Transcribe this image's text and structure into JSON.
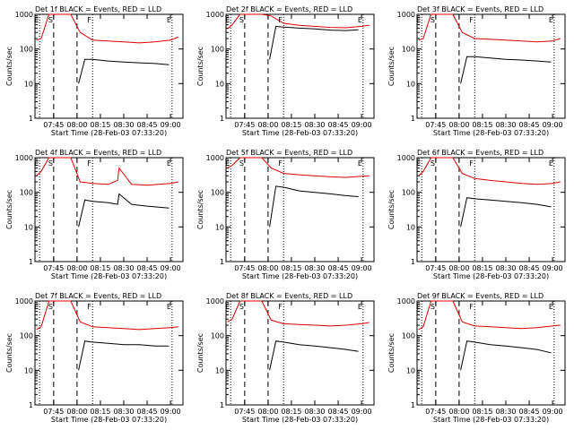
{
  "figure": {
    "legend_text": "BLACK = Events, RED = LLD",
    "xlabel": "Start Time (28-Feb-03 07:33:20)",
    "ylabel": "Counts/sec"
  },
  "colors": {
    "events": "#000000",
    "lld": "#dd0000"
  },
  "chart_data": [
    {
      "type": "line",
      "detector": "Det 1f",
      "title": "Det 1f BLACK = Events, RED = LLD",
      "xlabel": "Start Time (28-Feb-03 07:33:20)",
      "ylabel": "Counts/sec",
      "x_unit": "HH:MM",
      "xlim": [
        "07:33",
        "09:08"
      ],
      "ylim": [
        1,
        1000
      ],
      "yscale": "log",
      "x_ticks": [
        "07:45",
        "08:00",
        "08:15",
        "08:30",
        "08:45",
        "09:00"
      ],
      "y_ticks": [
        "1",
        "10",
        "100",
        "1000"
      ],
      "markers": [
        {
          "label": "E",
          "x": "07:36"
        },
        {
          "label": "S",
          "x": "07:45"
        },
        {
          "label": "F",
          "x": "08:10"
        },
        {
          "label": "E",
          "x": "09:01"
        }
      ],
      "dashed_lines": [
        "07:45",
        "08:00"
      ],
      "dotted_lines": [
        "07:36",
        "08:10",
        "09:01"
      ],
      "series": [
        {
          "name": "Events",
          "color": "black",
          "x": [
            "08:01",
            "08:05",
            "08:10",
            "08:20",
            "08:30",
            "08:40",
            "08:50",
            "08:59"
          ],
          "y": [
            10,
            50,
            50,
            45,
            42,
            40,
            38,
            35
          ]
        },
        {
          "name": "LLD",
          "color": "red",
          "x": [
            "07:34",
            "07:37",
            "07:42",
            "07:48",
            "07:56",
            "08:02",
            "08:10",
            "08:20",
            "08:30",
            "08:40",
            "08:50",
            "09:00",
            "09:05"
          ],
          "y": [
            180,
            200,
            1000,
            1000,
            1000,
            300,
            180,
            170,
            160,
            150,
            160,
            180,
            220
          ]
        }
      ]
    },
    {
      "type": "line",
      "detector": "Det 2f",
      "title": "Det 2f BLACK = Events, RED = LLD",
      "xlabel": "Start Time (28-Feb-03 07:33:20)",
      "ylabel": "Counts/sec",
      "x_unit": "HH:MM",
      "xlim": [
        "07:33",
        "09:08"
      ],
      "ylim": [
        1,
        1000
      ],
      "yscale": "log",
      "x_ticks": [
        "07:45",
        "08:00",
        "08:15",
        "08:30",
        "08:45",
        "09:00"
      ],
      "y_ticks": [
        "1",
        "10",
        "100",
        "1000"
      ],
      "markers": [
        {
          "label": "E",
          "x": "07:36"
        },
        {
          "label": "S",
          "x": "07:45"
        },
        {
          "label": "F",
          "x": "08:10"
        },
        {
          "label": "E",
          "x": "09:01"
        }
      ],
      "dashed_lines": [
        "07:45",
        "08:00"
      ],
      "dotted_lines": [
        "07:36",
        "08:10",
        "09:01"
      ],
      "series": [
        {
          "name": "Events",
          "color": "black",
          "x": [
            "08:01",
            "08:05",
            "08:10",
            "08:20",
            "08:30",
            "08:40",
            "08:50",
            "08:58"
          ],
          "y": [
            50,
            450,
            430,
            400,
            380,
            350,
            340,
            360
          ]
        },
        {
          "name": "LLD",
          "color": "red",
          "x": [
            "07:34",
            "07:37",
            "07:42",
            "07:48",
            "07:56",
            "08:02",
            "08:10",
            "08:20",
            "08:30",
            "08:40",
            "08:50",
            "09:00",
            "09:05"
          ],
          "y": [
            380,
            500,
            1000,
            1000,
            1000,
            900,
            550,
            480,
            450,
            420,
            410,
            450,
            480
          ]
        }
      ]
    },
    {
      "type": "line",
      "detector": "Det 3f",
      "title": "Det 3f BLACK = Events, RED = LLD",
      "xlabel": "Start Time (28-Feb-03 07:33:20)",
      "ylabel": "Counts/sec",
      "x_unit": "HH:MM",
      "xlim": [
        "07:33",
        "09:08"
      ],
      "ylim": [
        1,
        1000
      ],
      "yscale": "log",
      "x_ticks": [
        "07:45",
        "08:00",
        "08:15",
        "08:30",
        "08:45",
        "09:00"
      ],
      "y_ticks": [
        "1",
        "10",
        "100",
        "1000"
      ],
      "markers": [
        {
          "label": "E",
          "x": "07:36"
        },
        {
          "label": "S",
          "x": "07:45"
        },
        {
          "label": "F",
          "x": "08:10"
        },
        {
          "label": "E",
          "x": "09:01"
        }
      ],
      "dashed_lines": [
        "07:45",
        "08:00"
      ],
      "dotted_lines": [
        "07:36",
        "08:10",
        "09:01"
      ],
      "series": [
        {
          "name": "Events",
          "color": "black",
          "x": [
            "08:01",
            "08:05",
            "08:10",
            "08:20",
            "08:30",
            "08:40",
            "08:50",
            "08:59"
          ],
          "y": [
            10,
            60,
            60,
            55,
            50,
            48,
            45,
            42
          ]
        },
        {
          "name": "LLD",
          "color": "red",
          "x": [
            "07:34",
            "07:37",
            "07:42",
            "07:48",
            "07:56",
            "08:02",
            "08:10",
            "08:20",
            "08:30",
            "08:40",
            "08:50",
            "09:00",
            "09:05"
          ],
          "y": [
            180,
            200,
            1000,
            1000,
            1000,
            300,
            200,
            190,
            180,
            170,
            160,
            170,
            200
          ]
        }
      ]
    },
    {
      "type": "line",
      "detector": "Det 4f",
      "title": "Det 4f BLACK = Events, RED = LLD",
      "xlabel": "Start Time (28-Feb-03 07:33:20)",
      "ylabel": "Counts/sec",
      "x_unit": "HH:MM",
      "xlim": [
        "07:33",
        "09:08"
      ],
      "ylim": [
        1,
        1000
      ],
      "yscale": "log",
      "x_ticks": [
        "07:45",
        "08:00",
        "08:15",
        "08:30",
        "08:45",
        "09:00"
      ],
      "y_ticks": [
        "1",
        "10",
        "100",
        "1000"
      ],
      "markers": [
        {
          "label": "E",
          "x": "07:36"
        },
        {
          "label": "S",
          "x": "07:45"
        },
        {
          "label": "F",
          "x": "08:10"
        },
        {
          "label": "E",
          "x": "09:01"
        }
      ],
      "dashed_lines": [
        "07:45",
        "08:00"
      ],
      "dotted_lines": [
        "07:36",
        "08:10",
        "09:01"
      ],
      "series": [
        {
          "name": "Events",
          "color": "black",
          "x": [
            "08:01",
            "08:05",
            "08:10",
            "08:20",
            "08:26",
            "08:27",
            "08:35",
            "08:45",
            "08:59"
          ],
          "y": [
            10,
            60,
            55,
            50,
            45,
            90,
            45,
            40,
            35
          ]
        },
        {
          "name": "LLD",
          "color": "red",
          "x": [
            "07:34",
            "07:37",
            "07:42",
            "07:48",
            "07:56",
            "08:02",
            "08:10",
            "08:20",
            "08:26",
            "08:27",
            "08:35",
            "08:45",
            "09:00",
            "09:05"
          ],
          "y": [
            300,
            400,
            1000,
            1000,
            1000,
            200,
            180,
            170,
            220,
            500,
            170,
            160,
            180,
            200
          ]
        }
      ]
    },
    {
      "type": "line",
      "detector": "Det 5f",
      "title": "Det 5f BLACK = Events, RED = LLD",
      "xlabel": "Start Time (28-Feb-03 07:33:20)",
      "ylabel": "Counts/sec",
      "x_unit": "HH:MM",
      "xlim": [
        "07:33",
        "09:08"
      ],
      "ylim": [
        1,
        1000
      ],
      "yscale": "log",
      "x_ticks": [
        "07:45",
        "08:00",
        "08:15",
        "08:30",
        "08:45",
        "09:00"
      ],
      "y_ticks": [
        "1",
        "10",
        "100",
        "1000"
      ],
      "markers": [
        {
          "label": "E",
          "x": "07:36"
        },
        {
          "label": "S",
          "x": "07:45"
        },
        {
          "label": "F",
          "x": "08:10"
        },
        {
          "label": "E",
          "x": "09:01"
        }
      ],
      "dashed_lines": [
        "07:45",
        "08:00"
      ],
      "dotted_lines": [
        "07:36",
        "08:10",
        "09:01"
      ],
      "series": [
        {
          "name": "Events",
          "color": "black",
          "x": [
            "08:01",
            "08:05",
            "08:10",
            "08:20",
            "08:30",
            "08:40",
            "08:50",
            "08:58"
          ],
          "y": [
            10,
            150,
            140,
            110,
            100,
            90,
            80,
            75
          ]
        },
        {
          "name": "LLD",
          "color": "red",
          "x": [
            "07:34",
            "07:37",
            "07:42",
            "07:48",
            "07:56",
            "08:02",
            "08:10",
            "08:20",
            "08:30",
            "08:40",
            "08:50",
            "09:00",
            "09:05"
          ],
          "y": [
            500,
            600,
            1000,
            1000,
            1000,
            500,
            350,
            320,
            300,
            280,
            270,
            290,
            300
          ]
        }
      ]
    },
    {
      "type": "line",
      "detector": "Det 6f",
      "title": "Det 6f BLACK = Events, RED = LLD",
      "xlabel": "Start Time (28-Feb-03 07:33:20)",
      "ylabel": "Counts/sec",
      "x_unit": "HH:MM",
      "xlim": [
        "07:33",
        "09:08"
      ],
      "ylim": [
        1,
        1000
      ],
      "yscale": "log",
      "x_ticks": [
        "07:45",
        "08:00",
        "08:15",
        "08:30",
        "08:45",
        "09:00"
      ],
      "y_ticks": [
        "1",
        "10",
        "100",
        "1000"
      ],
      "markers": [
        {
          "label": "E",
          "x": "07:36"
        },
        {
          "label": "S",
          "x": "07:45"
        },
        {
          "label": "F",
          "x": "08:10"
        },
        {
          "label": "E",
          "x": "09:01"
        }
      ],
      "dashed_lines": [
        "07:45",
        "08:00"
      ],
      "dotted_lines": [
        "07:36",
        "08:10",
        "09:01"
      ],
      "series": [
        {
          "name": "Events",
          "color": "black",
          "x": [
            "08:01",
            "08:05",
            "08:10",
            "08:20",
            "08:30",
            "08:40",
            "08:50",
            "08:59"
          ],
          "y": [
            10,
            70,
            65,
            60,
            55,
            50,
            45,
            38
          ]
        },
        {
          "name": "LLD",
          "color": "red",
          "x": [
            "07:34",
            "07:37",
            "07:42",
            "07:48",
            "07:56",
            "08:02",
            "08:10",
            "08:20",
            "08:30",
            "08:40",
            "08:50",
            "09:00",
            "09:05"
          ],
          "y": [
            300,
            400,
            1000,
            1000,
            1000,
            350,
            250,
            220,
            200,
            180,
            170,
            180,
            200
          ]
        }
      ]
    },
    {
      "type": "line",
      "detector": "Det 7f",
      "title": "Det 7f BLACK = Events, RED = LLD",
      "xlabel": "Start Time (28-Feb-03 07:33:20)",
      "ylabel": "Counts/sec",
      "x_unit": "HH:MM",
      "xlim": [
        "07:33",
        "09:08"
      ],
      "ylim": [
        1,
        1000
      ],
      "yscale": "log",
      "x_ticks": [
        "07:45",
        "08:00",
        "08:15",
        "08:30",
        "08:45",
        "09:00"
      ],
      "y_ticks": [
        "1",
        "10",
        "100",
        "1000"
      ],
      "markers": [
        {
          "label": "E",
          "x": "07:36"
        },
        {
          "label": "S",
          "x": "07:45"
        },
        {
          "label": "F",
          "x": "08:10"
        },
        {
          "label": "E",
          "x": "09:01"
        }
      ],
      "dashed_lines": [
        "07:45",
        "08:00"
      ],
      "dotted_lines": [
        "07:36",
        "08:10",
        "09:01"
      ],
      "series": [
        {
          "name": "Events",
          "color": "black",
          "x": [
            "08:01",
            "08:05",
            "08:10",
            "08:20",
            "08:30",
            "08:40",
            "08:50",
            "08:59"
          ],
          "y": [
            10,
            70,
            65,
            60,
            55,
            55,
            50,
            50
          ]
        },
        {
          "name": "LLD",
          "color": "red",
          "x": [
            "07:34",
            "07:37",
            "07:42",
            "07:48",
            "07:56",
            "08:02",
            "08:10",
            "08:20",
            "08:30",
            "08:40",
            "08:50",
            "09:00",
            "09:05"
          ],
          "y": [
            150,
            180,
            1000,
            1000,
            1000,
            250,
            180,
            170,
            160,
            150,
            160,
            170,
            180
          ]
        }
      ]
    },
    {
      "type": "line",
      "detector": "Det 8f",
      "title": "Det 8f BLACK = Events, RED = LLD",
      "xlabel": "Start Time (28-Feb-03 07:33:20)",
      "ylabel": "Counts/sec",
      "x_unit": "HH:MM",
      "xlim": [
        "07:33",
        "09:08"
      ],
      "ylim": [
        1,
        1000
      ],
      "yscale": "log",
      "x_ticks": [
        "07:45",
        "08:00",
        "08:15",
        "08:30",
        "08:45",
        "09:00"
      ],
      "y_ticks": [
        "1",
        "10",
        "100",
        "1000"
      ],
      "markers": [
        {
          "label": "E",
          "x": "07:36"
        },
        {
          "label": "S",
          "x": "07:45"
        },
        {
          "label": "F",
          "x": "08:10"
        },
        {
          "label": "E",
          "x": "09:01"
        }
      ],
      "dashed_lines": [
        "07:45",
        "08:00"
      ],
      "dotted_lines": [
        "07:36",
        "08:10",
        "09:01"
      ],
      "series": [
        {
          "name": "Events",
          "color": "black",
          "x": [
            "08:01",
            "08:05",
            "08:10",
            "08:20",
            "08:30",
            "08:40",
            "08:50",
            "08:58"
          ],
          "y": [
            10,
            70,
            65,
            55,
            50,
            45,
            40,
            35
          ]
        },
        {
          "name": "LLD",
          "color": "red",
          "x": [
            "07:34",
            "07:37",
            "07:42",
            "07:48",
            "07:56",
            "08:02",
            "08:10",
            "08:20",
            "08:30",
            "08:40",
            "08:50",
            "09:00",
            "09:05"
          ],
          "y": [
            250,
            300,
            1000,
            1000,
            1000,
            280,
            220,
            210,
            200,
            190,
            200,
            220,
            240
          ]
        }
      ]
    },
    {
      "type": "line",
      "detector": "Det 9f",
      "title": "Det 9f BLACK = Events, RED = LLD",
      "xlabel": "Start Time (28-Feb-03 07:33:20)",
      "ylabel": "Counts/sec",
      "x_unit": "HH:MM",
      "xlim": [
        "07:33",
        "09:08"
      ],
      "ylim": [
        1,
        1000
      ],
      "yscale": "log",
      "x_ticks": [
        "07:45",
        "08:00",
        "08:15",
        "08:30",
        "08:45",
        "09:00"
      ],
      "y_ticks": [
        "1",
        "10",
        "100",
        "1000"
      ],
      "markers": [
        {
          "label": "E",
          "x": "07:36"
        },
        {
          "label": "S",
          "x": "07:45"
        },
        {
          "label": "F",
          "x": "08:10"
        },
        {
          "label": "E",
          "x": "09:01"
        }
      ],
      "dashed_lines": [
        "07:45",
        "08:00"
      ],
      "dotted_lines": [
        "07:36",
        "08:10",
        "09:01"
      ],
      "series": [
        {
          "name": "Events",
          "color": "black",
          "x": [
            "08:01",
            "08:05",
            "08:10",
            "08:20",
            "08:30",
            "08:40",
            "08:50",
            "08:59"
          ],
          "y": [
            10,
            70,
            65,
            55,
            50,
            45,
            40,
            32
          ]
        },
        {
          "name": "LLD",
          "color": "red",
          "x": [
            "07:34",
            "07:37",
            "07:42",
            "07:48",
            "07:56",
            "08:02",
            "08:10",
            "08:20",
            "08:30",
            "08:40",
            "08:50",
            "09:00",
            "09:05"
          ],
          "y": [
            150,
            180,
            1000,
            1000,
            1000,
            250,
            190,
            180,
            170,
            160,
            170,
            190,
            200
          ]
        }
      ]
    }
  ]
}
